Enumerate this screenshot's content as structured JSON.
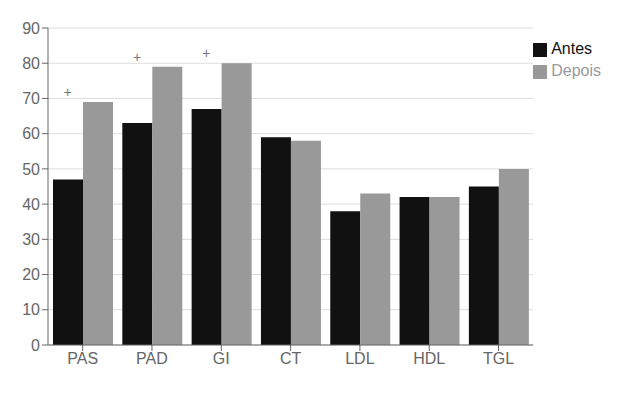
{
  "chart_data": {
    "type": "bar",
    "categories": [
      "PAS",
      "PAD",
      "GI",
      "CT",
      "LDL",
      "HDL",
      "TGL"
    ],
    "series": [
      {
        "name": "Antes",
        "color": "#111111",
        "values": [
          47,
          63,
          67,
          59,
          38,
          42,
          45
        ]
      },
      {
        "name": "Depois",
        "color": "#999999",
        "values": [
          69,
          79,
          80,
          58,
          43,
          42,
          50
        ]
      }
    ],
    "ylim": [
      0,
      90
    ],
    "yticks": [
      0,
      10,
      20,
      30,
      40,
      50,
      60,
      70,
      80,
      90
    ],
    "grid": true,
    "legend": "upper right",
    "annotations": [
      {
        "category": "PAS",
        "text": "+"
      },
      {
        "category": "PAD",
        "text": "+"
      },
      {
        "category": "GI",
        "text": "+"
      }
    ]
  }
}
